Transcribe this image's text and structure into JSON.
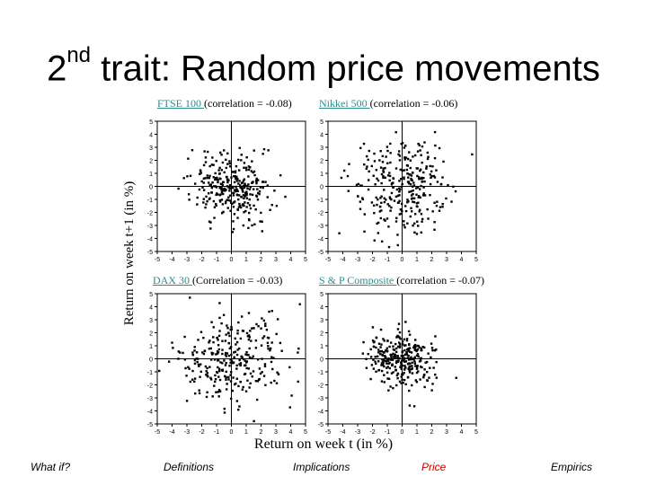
{
  "slide": {
    "title_prefix": "2",
    "title_sup": "nd",
    "title_rest": " trait: Random price movements",
    "y_axis_label": "Return on week t+1 (in %)",
    "x_axis_label": "Return on week t (in %)"
  },
  "panels": [
    {
      "name": "FTSE 100 ",
      "note": "(correlation = -0.08)"
    },
    {
      "name": "Nikkei 500 ",
      "note": "(correlation = -0.06)"
    },
    {
      "name": "DAX 30 ",
      "note": "(Correlation = -0.03)"
    },
    {
      "name": "S & P Composite ",
      "note": "(correlation = -0.07)"
    }
  ],
  "footer": {
    "items": [
      "What if?",
      "Definitions",
      "Implications",
      "Price",
      "Empirics"
    ],
    "price_color": "#c00000"
  },
  "colors": {
    "link": "#2e8c8c",
    "accent": "#c00000"
  },
  "chart_data": [
    {
      "type": "scatter",
      "title": "FTSE 100 (correlation = -0.08)",
      "xlim": [
        -5,
        5
      ],
      "ylim": [
        -5,
        5
      ],
      "xticks": [
        -5,
        -4,
        -3,
        -2,
        -1,
        0,
        1,
        2,
        3,
        4,
        5
      ],
      "yticks": [
        -5,
        -4,
        -3,
        -2,
        -1,
        0,
        1,
        2,
        3,
        4,
        5
      ],
      "correlation": -0.08,
      "spread": 1.3
    },
    {
      "type": "scatter",
      "title": "Nikkei 500 (correlation = -0.06)",
      "xlim": [
        -5,
        5
      ],
      "ylim": [
        -5,
        5
      ],
      "xticks": [
        -5,
        -4,
        -3,
        -2,
        -1,
        0,
        1,
        2,
        3,
        4,
        5
      ],
      "yticks": [
        -5,
        -4,
        -3,
        -2,
        -1,
        0,
        1,
        2,
        3,
        4,
        5
      ],
      "correlation": -0.06,
      "spread": 1.8
    },
    {
      "type": "scatter",
      "title": "DAX 30 (Correlation = -0.03)",
      "xlim": [
        -5,
        5
      ],
      "ylim": [
        -5,
        5
      ],
      "xticks": [
        -5,
        -4,
        -3,
        -2,
        -1,
        0,
        1,
        2,
        3,
        4,
        5
      ],
      "yticks": [
        -5,
        -4,
        -3,
        -2,
        -1,
        0,
        1,
        2,
        3,
        4,
        5
      ],
      "correlation": -0.03,
      "spread": 1.9
    },
    {
      "type": "scatter",
      "title": "S & P Composite (correlation = -0.07)",
      "xlim": [
        -5,
        5
      ],
      "ylim": [
        -5,
        5
      ],
      "xticks": [
        -5,
        -4,
        -3,
        -2,
        -1,
        0,
        1,
        2,
        3,
        4,
        5
      ],
      "yticks": [
        -5,
        -4,
        -3,
        -2,
        -1,
        0,
        1,
        2,
        3,
        4,
        5
      ],
      "correlation": -0.07,
      "spread": 1.1
    }
  ]
}
